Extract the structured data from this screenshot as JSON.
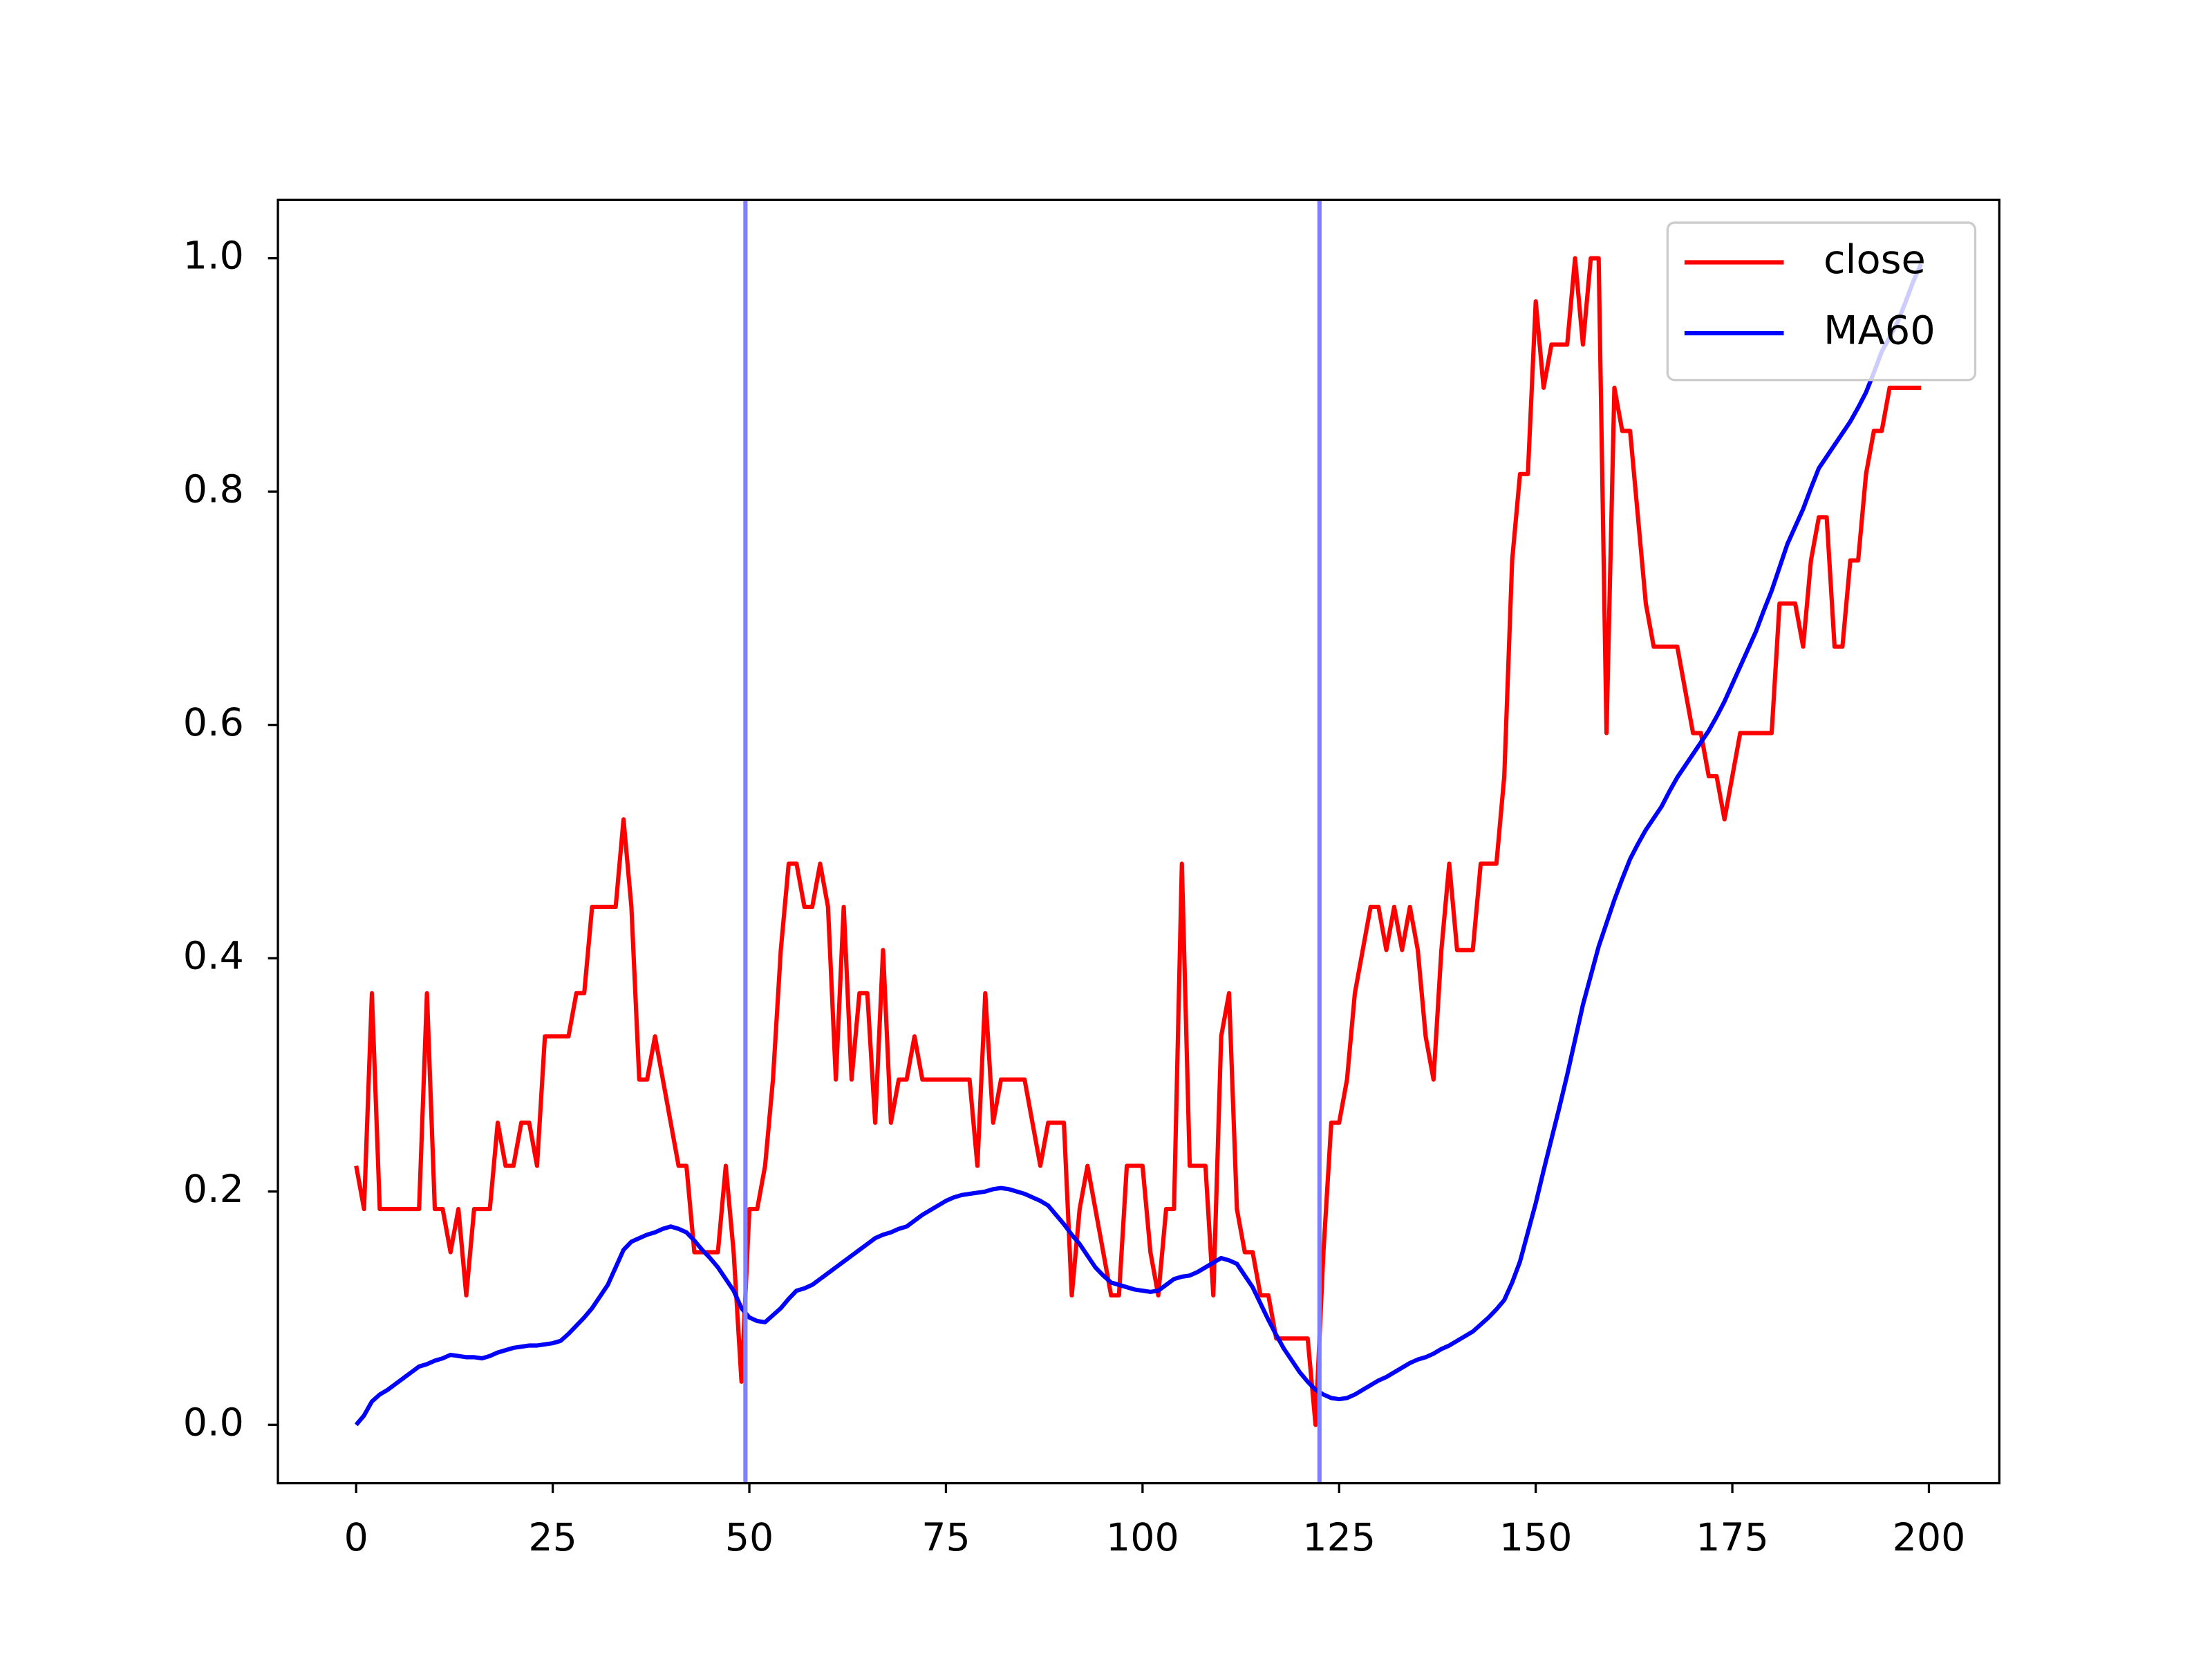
{
  "chart_data": {
    "type": "line",
    "x": [
      0,
      1,
      2,
      3,
      4,
      5,
      6,
      7,
      8,
      9,
      10,
      11,
      12,
      13,
      14,
      15,
      16,
      17,
      18,
      19,
      20,
      21,
      22,
      23,
      24,
      25,
      26,
      27,
      28,
      29,
      30,
      31,
      32,
      33,
      34,
      35,
      36,
      37,
      38,
      39,
      40,
      41,
      42,
      43,
      44,
      45,
      46,
      47,
      48,
      49,
      50,
      51,
      52,
      53,
      54,
      55,
      56,
      57,
      58,
      59,
      60,
      61,
      62,
      63,
      64,
      65,
      66,
      67,
      68,
      69,
      70,
      71,
      72,
      73,
      74,
      75,
      76,
      77,
      78,
      79,
      80,
      81,
      82,
      83,
      84,
      85,
      86,
      87,
      88,
      89,
      90,
      91,
      92,
      93,
      94,
      95,
      96,
      97,
      98,
      99,
      100,
      101,
      102,
      103,
      104,
      105,
      106,
      107,
      108,
      109,
      110,
      111,
      112,
      113,
      114,
      115,
      116,
      117,
      118,
      119,
      120,
      121,
      122,
      123,
      124,
      125,
      126,
      127,
      128,
      129,
      130,
      131,
      132,
      133,
      134,
      135,
      136,
      137,
      138,
      139,
      140,
      141,
      142,
      143,
      144,
      145,
      146,
      147,
      148,
      149,
      150,
      151,
      152,
      153,
      154,
      155,
      156,
      157,
      158,
      159,
      160,
      161,
      162,
      163,
      164,
      165,
      166,
      167,
      168,
      169,
      170,
      171,
      172,
      173,
      174,
      175,
      176,
      177,
      178,
      179,
      180,
      181,
      182,
      183,
      184,
      185,
      186,
      187,
      188,
      189,
      190,
      191,
      192,
      193,
      194,
      195,
      196,
      197,
      198,
      199
    ],
    "series": [
      {
        "name": "close",
        "color": "#ff0000",
        "values": [
          0.222,
          0.185,
          0.37,
          0.185,
          0.185,
          0.185,
          0.185,
          0.185,
          0.185,
          0.37,
          0.185,
          0.185,
          0.148,
          0.185,
          0.111,
          0.185,
          0.185,
          0.185,
          0.259,
          0.222,
          0.222,
          0.259,
          0.259,
          0.222,
          0.333,
          0.333,
          0.333,
          0.333,
          0.37,
          0.37,
          0.444,
          0.444,
          0.444,
          0.444,
          0.519,
          0.444,
          0.296,
          0.296,
          0.333,
          0.296,
          0.259,
          0.222,
          0.222,
          0.148,
          0.148,
          0.148,
          0.148,
          0.222,
          0.148,
          0.037,
          0.185,
          0.185,
          0.222,
          0.296,
          0.407,
          0.481,
          0.481,
          0.444,
          0.444,
          0.481,
          0.444,
          0.296,
          0.444,
          0.296,
          0.37,
          0.37,
          0.259,
          0.407,
          0.259,
          0.296,
          0.296,
          0.333,
          0.296,
          0.296,
          0.296,
          0.296,
          0.296,
          0.296,
          0.296,
          0.222,
          0.37,
          0.259,
          0.296,
          0.296,
          0.296,
          0.296,
          0.259,
          0.222,
          0.259,
          0.259,
          0.259,
          0.111,
          0.185,
          0.222,
          0.185,
          0.148,
          0.111,
          0.111,
          0.222,
          0.222,
          0.222,
          0.148,
          0.111,
          0.185,
          0.185,
          0.481,
          0.222,
          0.222,
          0.222,
          0.111,
          0.333,
          0.37,
          0.185,
          0.148,
          0.148,
          0.111,
          0.111,
          0.074,
          0.074,
          0.074,
          0.074,
          0.074,
          0.0,
          0.148,
          0.259,
          0.259,
          0.296,
          0.37,
          0.407,
          0.444,
          0.444,
          0.407,
          0.444,
          0.407,
          0.444,
          0.407,
          0.333,
          0.296,
          0.407,
          0.481,
          0.407,
          0.407,
          0.407,
          0.481,
          0.481,
          0.481,
          0.556,
          0.741,
          0.815,
          0.815,
          0.963,
          0.889,
          0.926,
          0.926,
          0.926,
          1.0,
          0.926,
          1.0,
          1.0,
          0.593,
          0.889,
          0.852,
          0.852,
          0.778,
          0.704,
          0.667,
          0.667,
          0.667,
          0.667,
          0.63,
          0.593,
          0.593,
          0.556,
          0.556,
          0.519,
          0.556,
          0.593,
          0.593,
          0.593,
          0.593,
          0.593,
          0.704,
          0.704,
          0.704,
          0.667,
          0.741,
          0.778,
          0.778,
          0.667,
          0.667,
          0.741,
          0.741,
          0.815,
          0.852,
          0.852,
          0.889,
          0.889,
          0.889,
          0.889,
          0.889
        ]
      },
      {
        "name": "MA60",
        "color": "#0000ff",
        "values": [
          0,
          0.008,
          0.02,
          0.026,
          0.03,
          0.035,
          0.04,
          0.045,
          0.05,
          0.052,
          0.055,
          0.057,
          0.06,
          0.059,
          0.058,
          0.058,
          0.057,
          0.059,
          0.062,
          0.064,
          0.066,
          0.067,
          0.068,
          0.068,
          0.069,
          0.07,
          0.072,
          0.078,
          0.085,
          0.092,
          0.1,
          0.11,
          0.12,
          0.135,
          0.15,
          0.157,
          0.16,
          0.163,
          0.165,
          0.168,
          0.17,
          0.168,
          0.165,
          0.158,
          0.15,
          0.143,
          0.135,
          0.125,
          0.115,
          0.1,
          0.092,
          0.089,
          0.088,
          0.094,
          0.1,
          0.108,
          0.115,
          0.117,
          0.12,
          0.125,
          0.13,
          0.135,
          0.14,
          0.145,
          0.15,
          0.155,
          0.16,
          0.163,
          0.165,
          0.168,
          0.17,
          0.175,
          0.18,
          0.184,
          0.188,
          0.192,
          0.195,
          0.197,
          0.198,
          0.199,
          0.2,
          0.202,
          0.203,
          0.202,
          0.2,
          0.198,
          0.195,
          0.192,
          0.188,
          0.18,
          0.172,
          0.163,
          0.155,
          0.145,
          0.135,
          0.128,
          0.122,
          0.12,
          0.118,
          0.116,
          0.115,
          0.114,
          0.115,
          0.12,
          0.125,
          0.127,
          0.128,
          0.131,
          0.135,
          0.139,
          0.143,
          0.141,
          0.138,
          0.128,
          0.118,
          0.104,
          0.09,
          0.077,
          0.065,
          0.055,
          0.045,
          0.037,
          0.03,
          0.026,
          0.023,
          0.022,
          0.023,
          0.026,
          0.03,
          0.034,
          0.038,
          0.041,
          0.045,
          0.049,
          0.053,
          0.056,
          0.058,
          0.061,
          0.065,
          0.068,
          0.072,
          0.076,
          0.08,
          0.086,
          0.092,
          0.099,
          0.107,
          0.122,
          0.14,
          0.165,
          0.19,
          0.218,
          0.245,
          0.272,
          0.3,
          0.33,
          0.36,
          0.385,
          0.41,
          0.43,
          0.45,
          0.468,
          0.485,
          0.498,
          0.51,
          0.52,
          0.53,
          0.543,
          0.555,
          0.565,
          0.575,
          0.585,
          0.595,
          0.607,
          0.62,
          0.635,
          0.65,
          0.665,
          0.68,
          0.698,
          0.715,
          0.735,
          0.755,
          0.77,
          0.785,
          0.803,
          0.82,
          0.83,
          0.84,
          0.85,
          0.86,
          0.872,
          0.885,
          0.902,
          0.92,
          0.932,
          0.945,
          0.962,
          0.98,
          0.995
        ]
      }
    ],
    "vlines": [
      49.5,
      122.5
    ],
    "vline_color": "#8080ff",
    "xlim": [
      -9.95,
      208.95
    ],
    "ylim": [
      -0.05,
      1.05
    ],
    "xticks": [
      0,
      25,
      50,
      75,
      100,
      125,
      150,
      175,
      200
    ],
    "yticks": [
      {
        "value": 0,
        "label": "0.0"
      },
      0.2,
      0.4,
      0.6,
      0.8,
      {
        "value": 1,
        "label": "1.0"
      }
    ],
    "legend": "upper right"
  }
}
